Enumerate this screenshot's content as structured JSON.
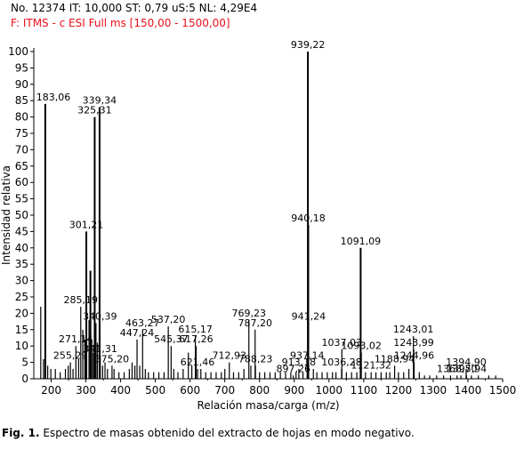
{
  "header": {
    "line1": "No. 12374 IT: 10,000  ST: 0,79  uS:5 NL: 4,29E4",
    "line2": "F: ITMS - c ESI Full ms [150,00 - 1500,00]"
  },
  "caption": {
    "label": "Fig. 1.",
    "text": " Espectro de masas obtenido del extracto de hojas en modo negativo."
  },
  "colors": {
    "axis": "#000000",
    "peaks": "#000000",
    "header2": "#e8101a"
  },
  "chart_data": {
    "type": "bar",
    "xlabel": "Relación masa/carga (m/z)",
    "ylabel": "Intensidad relativa",
    "xlim": [
      150,
      1500
    ],
    "ylim": [
      0,
      100
    ],
    "xticks": [
      200,
      300,
      400,
      500,
      600,
      700,
      800,
      900,
      1000,
      1100,
      1200,
      1300,
      1400,
      1500
    ],
    "yticks": [
      0,
      5,
      10,
      15,
      20,
      25,
      30,
      35,
      40,
      45,
      50,
      55,
      60,
      65,
      70,
      75,
      80,
      85,
      90,
      95,
      100
    ],
    "labeled_peaks": [
      {
        "mz": 183.06,
        "y": 84,
        "label": "183,06"
      },
      {
        "mz": 255.29,
        "y": 5,
        "label": "255,29"
      },
      {
        "mz": 271.14,
        "y": 10,
        "label": "271,14"
      },
      {
        "mz": 285.19,
        "y": 22,
        "label": "285,19"
      },
      {
        "mz": 301.21,
        "y": 45,
        "label": "301,21"
      },
      {
        "mz": 325.31,
        "y": 80,
        "label": "325,31"
      },
      {
        "mz": 339.34,
        "y": 83,
        "label": "339,34"
      },
      {
        "mz": 340.39,
        "y": 17,
        "label": "340,39"
      },
      {
        "mz": 341.31,
        "y": 7,
        "label": "341,31"
      },
      {
        "mz": 375.2,
        "y": 4,
        "label": "375,20"
      },
      {
        "mz": 447.24,
        "y": 12,
        "label": "447,24"
      },
      {
        "mz": 463.27,
        "y": 15,
        "label": "463,27"
      },
      {
        "mz": 537.2,
        "y": 16,
        "label": "537,20"
      },
      {
        "mz": 545.37,
        "y": 10,
        "label": "545,37"
      },
      {
        "mz": 615.17,
        "y": 13,
        "label": "615,17"
      },
      {
        "mz": 617.26,
        "y": 10,
        "label": "617,26"
      },
      {
        "mz": 621.46,
        "y": 3,
        "label": "621,46"
      },
      {
        "mz": 712.93,
        "y": 5,
        "label": "712,93"
      },
      {
        "mz": 769.23,
        "y": 18,
        "label": "769,23"
      },
      {
        "mz": 787.2,
        "y": 15,
        "label": "787,20"
      },
      {
        "mz": 788.23,
        "y": 4,
        "label": "788,23"
      },
      {
        "mz": 897.26,
        "y": 1,
        "label": "897,26"
      },
      {
        "mz": 913.18,
        "y": 3,
        "label": "913,18"
      },
      {
        "mz": 937.14,
        "y": 5,
        "label": "937,14"
      },
      {
        "mz": 939.22,
        "y": 100,
        "label": "939,22"
      },
      {
        "mz": 940.18,
        "y": 47,
        "label": "940,18"
      },
      {
        "mz": 941.24,
        "y": 17,
        "label": "941,24"
      },
      {
        "mz": 1036.28,
        "y": 3,
        "label": "1036,28"
      },
      {
        "mz": 1037.03,
        "y": 9,
        "label": "1037,03"
      },
      {
        "mz": 1091.09,
        "y": 40,
        "label": "1091,09"
      },
      {
        "mz": 1093.02,
        "y": 8,
        "label": "1093,02"
      },
      {
        "mz": 1121.32,
        "y": 2,
        "label": "1121,32"
      },
      {
        "mz": 1188.94,
        "y": 4,
        "label": "1188,94"
      },
      {
        "mz": 1243.01,
        "y": 13,
        "label": "1243,01"
      },
      {
        "mz": 1243.99,
        "y": 9,
        "label": "1243,99"
      },
      {
        "mz": 1244.96,
        "y": 5,
        "label": "1244,96"
      },
      {
        "mz": 1368.7,
        "y": 1,
        "label": "1368,70"
      },
      {
        "mz": 1394.9,
        "y": 3,
        "label": "1394,90"
      },
      {
        "mz": 1395.94,
        "y": 1,
        "label": "1395,94"
      }
    ],
    "unlabeled_peaks": [
      {
        "mz": 170,
        "y": 22
      },
      {
        "mz": 178,
        "y": 6
      },
      {
        "mz": 190,
        "y": 4
      },
      {
        "mz": 199,
        "y": 3
      },
      {
        "mz": 212,
        "y": 3
      },
      {
        "mz": 226,
        "y": 2
      },
      {
        "mz": 241,
        "y": 3
      },
      {
        "mz": 249,
        "y": 4
      },
      {
        "mz": 263,
        "y": 3
      },
      {
        "mz": 279,
        "y": 6
      },
      {
        "mz": 291,
        "y": 15
      },
      {
        "mz": 297,
        "y": 12
      },
      {
        "mz": 309,
        "y": 18
      },
      {
        "mz": 313,
        "y": 33
      },
      {
        "mz": 317,
        "y": 12
      },
      {
        "mz": 321,
        "y": 8
      },
      {
        "mz": 329,
        "y": 17
      },
      {
        "mz": 333,
        "y": 11
      },
      {
        "mz": 348,
        "y": 4
      },
      {
        "mz": 355,
        "y": 5
      },
      {
        "mz": 362,
        "y": 3
      },
      {
        "mz": 381,
        "y": 3
      },
      {
        "mz": 395,
        "y": 2
      },
      {
        "mz": 410,
        "y": 2
      },
      {
        "mz": 425,
        "y": 3
      },
      {
        "mz": 433,
        "y": 5
      },
      {
        "mz": 441,
        "y": 4
      },
      {
        "mz": 455,
        "y": 4
      },
      {
        "mz": 471,
        "y": 3
      },
      {
        "mz": 480,
        "y": 2
      },
      {
        "mz": 495,
        "y": 2
      },
      {
        "mz": 510,
        "y": 2
      },
      {
        "mz": 525,
        "y": 2
      },
      {
        "mz": 553,
        "y": 3
      },
      {
        "mz": 565,
        "y": 2
      },
      {
        "mz": 580,
        "y": 3
      },
      {
        "mz": 595,
        "y": 8
      },
      {
        "mz": 605,
        "y": 4
      },
      {
        "mz": 631,
        "y": 3
      },
      {
        "mz": 645,
        "y": 2
      },
      {
        "mz": 660,
        "y": 2
      },
      {
        "mz": 675,
        "y": 2
      },
      {
        "mz": 690,
        "y": 2
      },
      {
        "mz": 700,
        "y": 3
      },
      {
        "mz": 725,
        "y": 2
      },
      {
        "mz": 740,
        "y": 2
      },
      {
        "mz": 755,
        "y": 3
      },
      {
        "mz": 775,
        "y": 4
      },
      {
        "mz": 800,
        "y": 2
      },
      {
        "mz": 815,
        "y": 2
      },
      {
        "mz": 830,
        "y": 2
      },
      {
        "mz": 845,
        "y": 2
      },
      {
        "mz": 860,
        "y": 2
      },
      {
        "mz": 875,
        "y": 2
      },
      {
        "mz": 890,
        "y": 2
      },
      {
        "mz": 905,
        "y": 2
      },
      {
        "mz": 925,
        "y": 2
      },
      {
        "mz": 955,
        "y": 3
      },
      {
        "mz": 965,
        "y": 2
      },
      {
        "mz": 980,
        "y": 2
      },
      {
        "mz": 995,
        "y": 2
      },
      {
        "mz": 1010,
        "y": 2
      },
      {
        "mz": 1020,
        "y": 2
      },
      {
        "mz": 1050,
        "y": 2
      },
      {
        "mz": 1065,
        "y": 2
      },
      {
        "mz": 1080,
        "y": 2
      },
      {
        "mz": 1105,
        "y": 2
      },
      {
        "mz": 1135,
        "y": 2
      },
      {
        "mz": 1150,
        "y": 2
      },
      {
        "mz": 1165,
        "y": 2
      },
      {
        "mz": 1175,
        "y": 2
      },
      {
        "mz": 1200,
        "y": 2
      },
      {
        "mz": 1215,
        "y": 2
      },
      {
        "mz": 1230,
        "y": 3
      },
      {
        "mz": 1260,
        "y": 2
      },
      {
        "mz": 1275,
        "y": 1
      },
      {
        "mz": 1290,
        "y": 1
      },
      {
        "mz": 1310,
        "y": 1
      },
      {
        "mz": 1330,
        "y": 1
      },
      {
        "mz": 1350,
        "y": 1
      },
      {
        "mz": 1380,
        "y": 1
      },
      {
        "mz": 1410,
        "y": 1
      },
      {
        "mz": 1430,
        "y": 1
      },
      {
        "mz": 1460,
        "y": 1
      },
      {
        "mz": 1480,
        "y": 1
      }
    ]
  }
}
